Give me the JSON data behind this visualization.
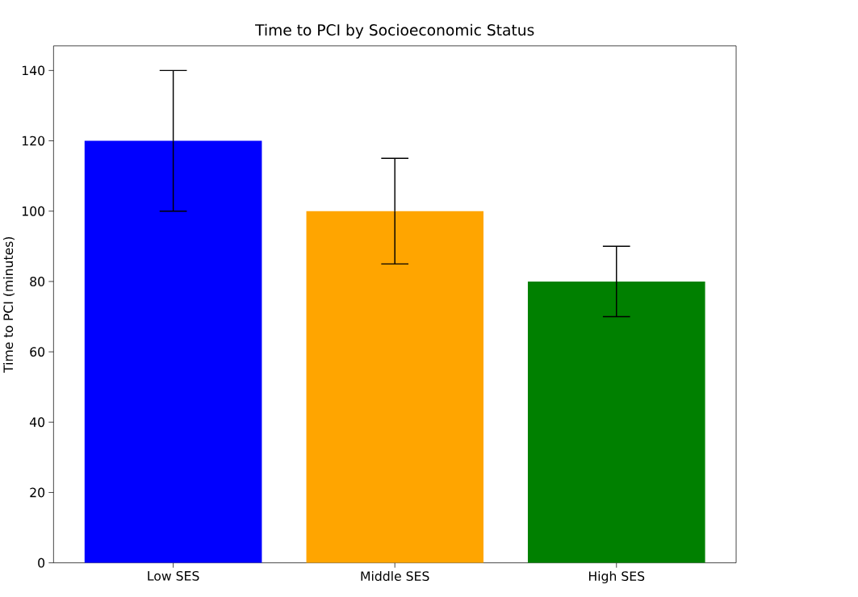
{
  "chart_data": {
    "type": "bar",
    "title": "Time to PCI by Socioeconomic Status",
    "ylabel": "Time to PCI (minutes)",
    "categories": [
      "Low SES",
      "Middle SES",
      "High SES"
    ],
    "values": [
      120,
      100,
      80
    ],
    "errors": [
      20,
      15,
      10
    ],
    "colors": [
      "#0000ff",
      "#ffa500",
      "#008000"
    ],
    "ylim": [
      0,
      147
    ],
    "yticks": [
      0,
      20,
      40,
      60,
      80,
      100,
      120,
      140
    ]
  }
}
